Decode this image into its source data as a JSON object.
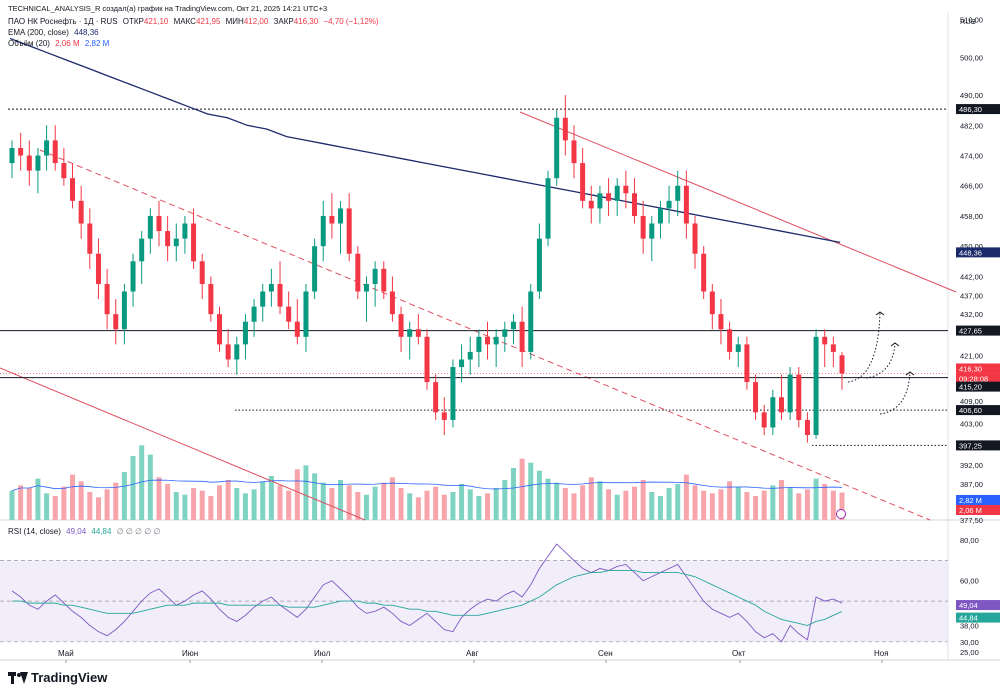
{
  "header": {
    "top_line": "TECHNICAL_ANALYSIS_R создал(а) график на TradingView.com, Окт 21, 2025 14:21 UTC+3",
    "symbol": "ПАО НК Роснефть · 1Д · RUS",
    "ohlc": {
      "open_label": "ОТКР",
      "open": "421,10",
      "high_label": "МАКС",
      "high": "421,95",
      "low_label": "МИН",
      "low": "412,00",
      "close_label": "ЗАКР",
      "close": "416,30",
      "change": "−4,70 (−1,12%)"
    },
    "ema_label": "EMA (200, close)",
    "ema_value": "448,36",
    "volume_label": "Объём (20)",
    "volume_value": "2,06 M",
    "volume_ma": "2,82 M",
    "rsi_label": "RSI (14, close)",
    "rsi_value": "49,04",
    "rsi_ma": "44,84",
    "rsi_extras": "∅ ∅ ∅ ∅ ∅"
  },
  "currency": "RUB",
  "price_axis_ticks": [
    "510,00",
    "500,00",
    "490,00",
    "482,00",
    "474,00",
    "466,00",
    "458,00",
    "450,00",
    "442,00",
    "437,00",
    "432,00",
    "421,00",
    "409,00",
    "403,00",
    "392,00",
    "387,00",
    "382,00",
    "377,50"
  ],
  "price_labels": [
    {
      "text": "486,30",
      "style": "black"
    },
    {
      "text": "448,36",
      "style": "navy"
    },
    {
      "text": "427,65",
      "style": "black"
    },
    {
      "text": "416,30",
      "style": "red"
    },
    {
      "text": "09:28:08",
      "style": "red"
    },
    {
      "text": "415,20",
      "style": "black"
    },
    {
      "text": "406,60",
      "style": "black"
    },
    {
      "text": "397,25",
      "style": "black"
    },
    {
      "text": "2,82 M",
      "style": "blue"
    },
    {
      "text": "2,06 M",
      "style": "red"
    }
  ],
  "rsi_axis_ticks": [
    "80,00",
    "60,00",
    "38,00",
    "30,00",
    "25,00"
  ],
  "rsi_labels": [
    {
      "text": "49,04",
      "style": "purple"
    },
    {
      "text": "44,84",
      "style": "teal"
    }
  ],
  "time_axis": [
    "Май",
    "Июн",
    "Июл",
    "Авг",
    "Сен",
    "Окт",
    "Ноя"
  ],
  "logo_text": "TradingView",
  "colors": {
    "up": "#089981",
    "down": "#f23645",
    "ema": "#1b2a6b",
    "trend": "#e05060",
    "rsi": "#7e57c2",
    "rsi_ma": "#26a69a",
    "vol_ma": "#2962ff"
  },
  "chart_data": {
    "type": "candlestick",
    "instrument": "ПАО НК Роснефть",
    "timeframe": "1Д",
    "horizontal_levels": [
      486.3,
      427.65,
      415.2,
      406.6,
      397.25
    ],
    "ylim": [
      377.5,
      512
    ],
    "ohlc_series": [
      [
        472,
        478,
        468,
        476
      ],
      [
        476,
        480,
        470,
        474
      ],
      [
        474,
        478,
        466,
        470
      ],
      [
        470,
        476,
        464,
        474
      ],
      [
        474,
        482,
        470,
        478
      ],
      [
        478,
        482,
        470,
        472
      ],
      [
        472,
        476,
        466,
        468
      ],
      [
        468,
        472,
        460,
        462
      ],
      [
        462,
        466,
        452,
        456
      ],
      [
        456,
        460,
        444,
        448
      ],
      [
        448,
        452,
        436,
        440
      ],
      [
        440,
        444,
        428,
        432
      ],
      [
        432,
        436,
        424,
        428
      ],
      [
        428,
        440,
        424,
        438
      ],
      [
        438,
        448,
        434,
        446
      ],
      [
        446,
        454,
        440,
        452
      ],
      [
        452,
        460,
        448,
        458
      ],
      [
        458,
        462,
        450,
        454
      ],
      [
        454,
        458,
        446,
        450
      ],
      [
        450,
        456,
        446,
        452
      ],
      [
        452,
        458,
        448,
        456
      ],
      [
        456,
        460,
        444,
        446
      ],
      [
        446,
        448,
        436,
        440
      ],
      [
        440,
        442,
        430,
        432
      ],
      [
        432,
        434,
        422,
        424
      ],
      [
        424,
        428,
        418,
        420
      ],
      [
        420,
        426,
        416,
        424
      ],
      [
        424,
        432,
        420,
        430
      ],
      [
        430,
        436,
        426,
        434
      ],
      [
        434,
        440,
        430,
        438
      ],
      [
        438,
        444,
        434,
        440
      ],
      [
        440,
        446,
        432,
        434
      ],
      [
        434,
        438,
        428,
        430
      ],
      [
        430,
        436,
        424,
        426
      ],
      [
        426,
        440,
        422,
        438
      ],
      [
        438,
        452,
        436,
        450
      ],
      [
        450,
        462,
        446,
        458
      ],
      [
        458,
        464,
        452,
        456
      ],
      [
        456,
        462,
        448,
        460
      ],
      [
        460,
        464,
        446,
        448
      ],
      [
        448,
        450,
        436,
        438
      ],
      [
        438,
        442,
        430,
        440
      ],
      [
        440,
        446,
        434,
        444
      ],
      [
        444,
        446,
        436,
        438
      ],
      [
        438,
        442,
        430,
        432
      ],
      [
        432,
        434,
        422,
        426
      ],
      [
        426,
        430,
        420,
        428
      ],
      [
        428,
        432,
        424,
        426
      ],
      [
        426,
        428,
        412,
        414
      ],
      [
        414,
        416,
        404,
        406
      ],
      [
        406,
        410,
        400,
        404
      ],
      [
        404,
        420,
        402,
        418
      ],
      [
        418,
        424,
        414,
        420
      ],
      [
        420,
        426,
        416,
        422
      ],
      [
        422,
        428,
        418,
        426
      ],
      [
        426,
        430,
        420,
        424
      ],
      [
        424,
        428,
        418,
        426
      ],
      [
        426,
        430,
        422,
        428
      ],
      [
        428,
        432,
        424,
        430
      ],
      [
        430,
        434,
        418,
        422
      ],
      [
        422,
        440,
        420,
        438
      ],
      [
        438,
        456,
        436,
        452
      ],
      [
        452,
        470,
        450,
        468
      ],
      [
        468,
        486,
        466,
        484
      ],
      [
        484,
        490,
        474,
        478
      ],
      [
        478,
        482,
        468,
        472
      ],
      [
        472,
        476,
        460,
        462
      ],
      [
        462,
        466,
        456,
        460
      ],
      [
        460,
        466,
        456,
        464
      ],
      [
        464,
        468,
        458,
        462
      ],
      [
        462,
        468,
        458,
        466
      ],
      [
        466,
        470,
        460,
        464
      ],
      [
        464,
        468,
        456,
        458
      ],
      [
        458,
        462,
        448,
        452
      ],
      [
        452,
        458,
        446,
        456
      ],
      [
        456,
        462,
        452,
        460
      ],
      [
        460,
        466,
        456,
        462
      ],
      [
        462,
        470,
        458,
        466
      ],
      [
        466,
        470,
        452,
        456
      ],
      [
        456,
        458,
        444,
        448
      ],
      [
        448,
        450,
        436,
        438
      ],
      [
        438,
        440,
        428,
        432
      ],
      [
        432,
        436,
        424,
        428
      ],
      [
        428,
        430,
        420,
        422
      ],
      [
        422,
        426,
        418,
        424
      ],
      [
        424,
        426,
        412,
        414
      ],
      [
        414,
        416,
        404,
        406
      ],
      [
        406,
        408,
        400,
        402
      ],
      [
        402,
        412,
        400,
        410
      ],
      [
        410,
        416,
        404,
        406
      ],
      [
        406,
        418,
        404,
        416
      ],
      [
        416,
        418,
        402,
        404
      ],
      [
        404,
        406,
        398,
        400
      ],
      [
        400,
        428,
        399,
        426
      ],
      [
        426,
        428,
        418,
        424
      ],
      [
        424,
        426,
        418,
        422
      ],
      [
        421.1,
        421.95,
        412,
        416.3
      ]
    ],
    "ema200": [
      505,
      503,
      501,
      499,
      497,
      495,
      493,
      491,
      489,
      487,
      485,
      484,
      482,
      481,
      479,
      478,
      477,
      476,
      475,
      474,
      473,
      472,
      471,
      470,
      469,
      468,
      467,
      466,
      465,
      464,
      463,
      462,
      461,
      460,
      459,
      458,
      457,
      456,
      455,
      454,
      453,
      452,
      451
    ],
    "volume": [
      2.2,
      2.6,
      2.4,
      3.1,
      2.0,
      1.8,
      2.5,
      3.4,
      2.9,
      2.1,
      1.7,
      2.3,
      2.8,
      3.6,
      4.8,
      5.6,
      4.9,
      3.2,
      2.7,
      2.1,
      1.9,
      2.4,
      2.2,
      1.8,
      2.6,
      3.0,
      2.4,
      2.0,
      2.3,
      2.9,
      3.3,
      2.6,
      2.2,
      3.8,
      4.1,
      3.5,
      2.8,
      2.4,
      3.0,
      2.6,
      2.1,
      1.9,
      2.5,
      2.8,
      3.2,
      2.4,
      2.0,
      1.7,
      2.2,
      2.5,
      1.9,
      2.1,
      2.7,
      2.3,
      1.8,
      2.0,
      2.4,
      3.0,
      3.9,
      4.6,
      4.3,
      3.7,
      3.1,
      2.8,
      2.4,
      2.0,
      2.6,
      3.2,
      2.9,
      2.3,
      1.9,
      2.2,
      2.5,
      3.0,
      2.1,
      1.8,
      2.4,
      2.7,
      3.4,
      2.6,
      2.2,
      2.0,
      2.3,
      2.9,
      2.5,
      2.1,
      1.8,
      2.2,
      2.6,
      3.0,
      2.4,
      2.0,
      2.3,
      3.1,
      2.7,
      2.2,
      2.06
    ],
    "rsi": [
      55,
      52,
      48,
      46,
      50,
      53,
      49,
      45,
      42,
      38,
      35,
      33,
      36,
      40,
      45,
      50,
      54,
      56,
      52,
      48,
      50,
      53,
      55,
      51,
      46,
      42,
      40,
      43,
      47,
      50,
      52,
      48,
      45,
      42,
      46,
      52,
      58,
      60,
      56,
      52,
      47,
      44,
      45,
      47,
      44,
      40,
      38,
      41,
      44,
      40,
      36,
      35,
      42,
      46,
      49,
      51,
      50,
      53,
      55,
      52,
      58,
      66,
      72,
      78,
      74,
      70,
      66,
      64,
      66,
      65,
      67,
      68,
      64,
      60,
      62,
      64,
      66,
      68,
      62,
      56,
      50,
      46,
      44,
      42,
      44,
      40,
      35,
      32,
      34,
      30,
      38,
      34,
      31,
      52,
      50,
      51,
      49.04
    ],
    "rsi_ma": [
      50,
      50,
      49,
      49,
      49,
      49,
      48,
      48,
      47,
      46,
      45,
      44,
      44,
      44,
      44,
      45,
      46,
      47,
      48,
      48,
      48,
      49,
      49,
      49,
      49,
      48,
      48,
      48,
      48,
      48,
      48,
      48,
      47,
      47,
      47,
      47,
      48,
      49,
      50,
      50,
      50,
      49,
      49,
      48,
      48,
      47,
      46,
      46,
      45,
      45,
      44,
      43,
      43,
      43,
      43,
      44,
      45,
      46,
      47,
      48,
      50,
      52,
      55,
      58,
      60,
      62,
      63,
      64,
      64,
      65,
      65,
      65,
      65,
      64,
      64,
      64,
      64,
      64,
      63,
      62,
      60,
      58,
      56,
      54,
      52,
      50,
      48,
      45,
      43,
      41,
      40,
      39,
      38,
      40,
      41,
      43,
      44.84
    ],
    "rsi_ylim": [
      25,
      80
    ],
    "time_labels": [
      "Май",
      "Июн",
      "Июл",
      "Авг",
      "Сен",
      "Окт",
      "Ноя"
    ]
  }
}
